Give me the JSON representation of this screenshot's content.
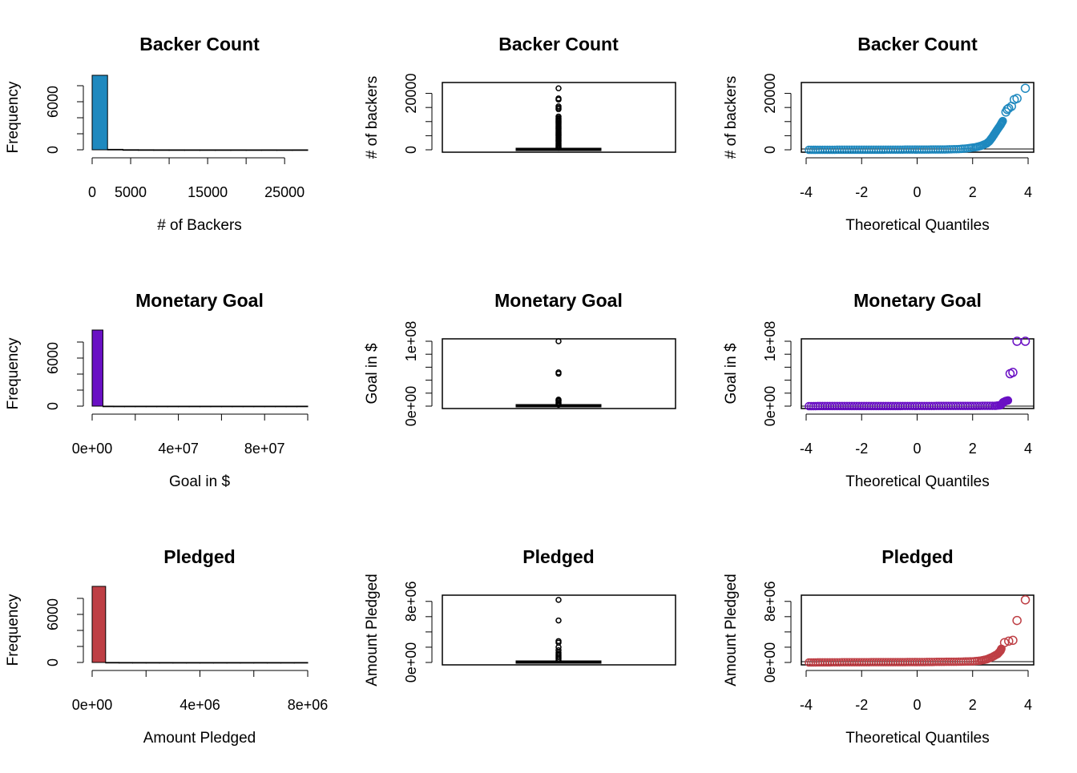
{
  "figure": {
    "rows": [
      {
        "title": "Backer Count",
        "color": "#1f89bf",
        "hist": {
          "type": "bar",
          "title": "Backer Count",
          "xlabel": "# of Backers",
          "ylabel": "Frequency",
          "xlim": [
            0,
            28000
          ],
          "ylim": [
            0,
            10000
          ],
          "x_ticks": [
            0,
            5000,
            10000,
            15000,
            20000,
            25000
          ],
          "x_tick_labels": [
            "0",
            "5000",
            "",
            "15000",
            "",
            "25000"
          ],
          "y_ticks": [
            0,
            2000,
            4000,
            6000,
            8000
          ],
          "y_tick_labels": [
            "0",
            "",
            "",
            "6000",
            ""
          ],
          "bin_edges": [
            0,
            2000,
            4000,
            6000,
            8000,
            10000,
            12000,
            14000,
            16000,
            18000,
            20000,
            22000,
            24000,
            26000,
            28000
          ],
          "counts": [
            9300,
            60,
            15,
            8,
            4,
            3,
            2,
            1,
            1,
            1,
            0,
            1,
            0,
            1
          ]
        },
        "box": {
          "type": "box",
          "title": "Backer Count",
          "ylabel": "# of backers",
          "ylim": [
            0,
            23000
          ],
          "y_ticks": [
            0,
            5000,
            10000,
            15000,
            20000
          ],
          "y_tick_labels": [
            "0",
            "",
            "",
            "",
            "20000"
          ],
          "outliers": [
            21800,
            18200,
            17800,
            15400,
            14900,
            14400,
            11800,
            11300,
            10900,
            10500,
            10100,
            9700,
            9300,
            8900,
            8500,
            8100,
            7700,
            7300,
            6900,
            6500,
            6100,
            5700,
            5300,
            4900,
            4500,
            4100,
            3700,
            3300,
            2900,
            2500,
            2100,
            1700,
            1300,
            900,
            600
          ]
        },
        "qq": {
          "type": "scatter",
          "title": "Backer Count",
          "xlabel": "Theoretical Quantiles",
          "ylabel": "# of backers",
          "xlim": [
            -4.2,
            4.2
          ],
          "ylim": [
            0,
            23000
          ],
          "x_ticks": [
            -4,
            -2,
            0,
            2,
            4
          ],
          "x_tick_labels": [
            "-4",
            "-2",
            "0",
            "2",
            "4"
          ],
          "y_ticks": [
            0,
            5000,
            10000,
            15000,
            20000
          ],
          "y_tick_labels": [
            "0",
            "",
            "",
            "",
            "20000"
          ],
          "ref_line": 300,
          "curve": [
            [
              -3.9,
              0
            ],
            [
              -3.5,
              10
            ],
            [
              -2,
              30
            ],
            [
              0,
              60
            ],
            [
              1,
              120
            ],
            [
              1.5,
              250
            ],
            [
              1.8,
              500
            ],
            [
              2.1,
              900
            ],
            [
              2.3,
              1400
            ],
            [
              2.5,
              2200
            ],
            [
              2.6,
              3000
            ],
            [
              2.7,
              4300
            ],
            [
              2.8,
              5800
            ],
            [
              2.9,
              7300
            ],
            [
              3.0,
              8700
            ],
            [
              3.05,
              9600
            ],
            [
              3.1,
              10400
            ]
          ],
          "outliers": [
            [
              3.2,
              13400
            ],
            [
              3.25,
              14300
            ],
            [
              3.3,
              14700
            ],
            [
              3.4,
              15400
            ],
            [
              3.5,
              17800
            ],
            [
              3.6,
              18200
            ],
            [
              3.9,
              21800
            ]
          ]
        }
      },
      {
        "title": "Monetary Goal",
        "color": "#6a10c4",
        "hist": {
          "type": "bar",
          "title": "Monetary Goal",
          "xlabel": "Goal in $",
          "ylabel": "Frequency",
          "xlim": [
            0,
            100000000
          ],
          "ylim": [
            0,
            10000
          ],
          "x_ticks": [
            0,
            20000000,
            40000000,
            60000000,
            80000000,
            100000000
          ],
          "x_tick_labels": [
            "0e+00",
            "",
            "4e+07",
            "",
            "8e+07",
            ""
          ],
          "y_ticks": [
            0,
            2000,
            4000,
            6000,
            8000
          ],
          "y_tick_labels": [
            "0",
            "",
            "",
            "6000",
            ""
          ],
          "bin_edges": [
            0,
            5000000,
            10000000,
            15000000,
            20000000,
            25000000,
            30000000,
            35000000,
            40000000,
            45000000,
            50000000,
            55000000,
            60000000,
            65000000,
            70000000,
            75000000,
            80000000,
            85000000,
            90000000,
            95000000,
            100000000
          ],
          "counts": [
            9500,
            4,
            0,
            0,
            0,
            0,
            0,
            0,
            0,
            0,
            0,
            0,
            0,
            0,
            0,
            0,
            0,
            0,
            0,
            1
          ]
        },
        "box": {
          "type": "box",
          "title": "Monetary Goal",
          "ylabel": "Goal in $",
          "ylim": [
            0,
            100000000
          ],
          "y_ticks": [
            0,
            20000000,
            40000000,
            60000000,
            80000000,
            100000000
          ],
          "y_tick_labels": [
            "0e+00",
            "",
            "",
            "",
            "",
            "1e+08"
          ],
          "outliers": [
            100000000,
            52000000,
            50000000,
            10000000,
            9000000,
            8000000,
            6000000,
            4000000,
            2000000
          ]
        },
        "qq": {
          "type": "scatter",
          "title": "Monetary Goal",
          "xlabel": "Theoretical Quantiles",
          "ylabel": "Goal in $",
          "xlim": [
            -4.2,
            4.2
          ],
          "ylim": [
            0,
            100000000
          ],
          "x_ticks": [
            -4,
            -2,
            0,
            2,
            4
          ],
          "x_tick_labels": [
            "-4",
            "-2",
            "0",
            "2",
            "4"
          ],
          "y_ticks": [
            0,
            20000000,
            40000000,
            60000000,
            80000000,
            100000000
          ],
          "y_tick_labels": [
            "0e+00",
            "",
            "",
            "",
            "",
            "1e+08"
          ],
          "ref_line": 0,
          "curve": [
            [
              -3.9,
              0
            ],
            [
              -3.5,
              100000
            ],
            [
              -2,
              150000
            ],
            [
              0,
              200000
            ],
            [
              2,
              300000
            ],
            [
              2.8,
              500000
            ],
            [
              3.0,
              1200000
            ],
            [
              3.05,
              3000000
            ],
            [
              3.1,
              6000000
            ],
            [
              3.2,
              8000000
            ],
            [
              3.3,
              9000000
            ]
          ],
          "outliers": [
            [
              3.35,
              50000000
            ],
            [
              3.45,
              52000000
            ],
            [
              3.6,
              100000000
            ],
            [
              3.9,
              100000000
            ]
          ]
        }
      },
      {
        "title": "Pledged",
        "color": "#be3f45",
        "hist": {
          "type": "bar",
          "title": "Pledged",
          "xlabel": "Amount Pledged",
          "ylabel": "Frequency",
          "xlim": [
            0,
            8000000
          ],
          "ylim": [
            0,
            10000
          ],
          "x_ticks": [
            0,
            2000000,
            4000000,
            6000000,
            8000000
          ],
          "x_tick_labels": [
            "0e+00",
            "",
            "4e+06",
            "",
            "8e+06"
          ],
          "y_ticks": [
            0,
            2000,
            4000,
            6000,
            8000
          ],
          "y_tick_labels": [
            "0",
            "",
            "",
            "6000",
            ""
          ],
          "bin_edges": [
            0,
            500000,
            1000000,
            1500000,
            2000000,
            2500000,
            3000000,
            3500000,
            4000000,
            4500000,
            5000000,
            5500000,
            6000000,
            6500000,
            7000000,
            7500000,
            8000000
          ],
          "counts": [
            9500,
            10,
            4,
            2,
            1,
            1,
            0,
            0,
            0,
            0,
            0,
            0,
            1,
            0,
            0,
            1
          ]
        },
        "box": {
          "type": "box",
          "title": "Pledged",
          "ylabel": "Amount Pledged",
          "ylim": [
            0,
            8500000
          ],
          "y_ticks": [
            0,
            2000000,
            4000000,
            6000000,
            8000000
          ],
          "y_tick_labels": [
            "0e+00",
            "",
            "",
            "",
            "8e+06"
          ],
          "outliers": [
            8200000,
            5500000,
            2800000,
            2600000,
            2000000,
            1600000,
            1300000,
            1100000,
            900000,
            700000,
            500000,
            300000
          ]
        },
        "qq": {
          "type": "scatter",
          "title": "Pledged",
          "xlabel": "Theoretical Quantiles",
          "ylabel": "Amount Pledged",
          "xlim": [
            -4.2,
            4.2
          ],
          "ylim": [
            0,
            8500000
          ],
          "x_ticks": [
            -4,
            -2,
            0,
            2,
            4
          ],
          "x_tick_labels": [
            "-4",
            "-2",
            "0",
            "2",
            "4"
          ],
          "y_ticks": [
            0,
            2000000,
            4000000,
            6000000,
            8000000
          ],
          "y_tick_labels": [
            "0e+00",
            "",
            "",
            "",
            "8e+06"
          ],
          "ref_line": 100000,
          "curve": [
            [
              -3.9,
              0
            ],
            [
              -3.5,
              10000
            ],
            [
              -2,
              30000
            ],
            [
              0,
              50000
            ],
            [
              1.5,
              100000
            ],
            [
              2.0,
              150000
            ],
            [
              2.3,
              250000
            ],
            [
              2.5,
              400000
            ],
            [
              2.7,
              700000
            ],
            [
              2.9,
              1100000
            ],
            [
              3.0,
              1500000
            ],
            [
              3.05,
              1900000
            ]
          ],
          "outliers": [
            [
              3.15,
              2600000
            ],
            [
              3.3,
              2800000
            ],
            [
              3.45,
              2900000
            ],
            [
              3.6,
              5500000
            ],
            [
              3.9,
              8200000
            ]
          ]
        }
      }
    ]
  }
}
